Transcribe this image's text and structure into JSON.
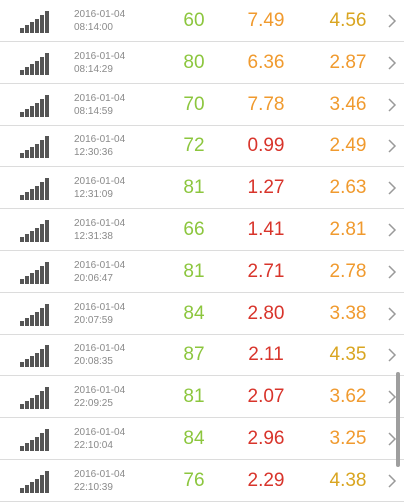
{
  "colors": {
    "green": "#8cc63e",
    "orange": "#f09a2e",
    "red": "#d8342b",
    "gold": "#d9a520"
  },
  "icons": {
    "signal": "signal-bars-icon",
    "chevron": "chevron-right-icon"
  },
  "rows": [
    {
      "date": "2016-01-04",
      "time": "08:14:00",
      "v1": "60",
      "v2": "7.49",
      "v3": "4.56",
      "c1": "green",
      "c2": "orange",
      "c3": "gold"
    },
    {
      "date": "2016-01-04",
      "time": "08:14:29",
      "v1": "80",
      "v2": "6.36",
      "v3": "2.87",
      "c1": "green",
      "c2": "orange",
      "c3": "orange"
    },
    {
      "date": "2016-01-04",
      "time": "08:14:59",
      "v1": "70",
      "v2": "7.78",
      "v3": "3.46",
      "c1": "green",
      "c2": "orange",
      "c3": "orange"
    },
    {
      "date": "2016-01-04",
      "time": "12:30:36",
      "v1": "72",
      "v2": "0.99",
      "v3": "2.49",
      "c1": "green",
      "c2": "red",
      "c3": "orange"
    },
    {
      "date": "2016-01-04",
      "time": "12:31:09",
      "v1": "81",
      "v2": "1.27",
      "v3": "2.63",
      "c1": "green",
      "c2": "red",
      "c3": "orange"
    },
    {
      "date": "2016-01-04",
      "time": "12:31:38",
      "v1": "66",
      "v2": "1.41",
      "v3": "2.81",
      "c1": "green",
      "c2": "red",
      "c3": "orange"
    },
    {
      "date": "2016-01-04",
      "time": "20:06:47",
      "v1": "81",
      "v2": "2.71",
      "v3": "2.78",
      "c1": "green",
      "c2": "red",
      "c3": "orange"
    },
    {
      "date": "2016-01-04",
      "time": "20:07:59",
      "v1": "84",
      "v2": "2.80",
      "v3": "3.38",
      "c1": "green",
      "c2": "red",
      "c3": "orange"
    },
    {
      "date": "2016-01-04",
      "time": "20:08:35",
      "v1": "87",
      "v2": "2.11",
      "v3": "4.35",
      "c1": "green",
      "c2": "red",
      "c3": "gold"
    },
    {
      "date": "2016-01-04",
      "time": "22:09:25",
      "v1": "81",
      "v2": "2.07",
      "v3": "3.62",
      "c1": "green",
      "c2": "red",
      "c3": "orange"
    },
    {
      "date": "2016-01-04",
      "time": "22:10:04",
      "v1": "84",
      "v2": "2.96",
      "v3": "3.25",
      "c1": "green",
      "c2": "red",
      "c3": "orange"
    },
    {
      "date": "2016-01-04",
      "time": "22:10:39",
      "v1": "76",
      "v2": "2.29",
      "v3": "4.38",
      "c1": "green",
      "c2": "red",
      "c3": "gold"
    }
  ]
}
